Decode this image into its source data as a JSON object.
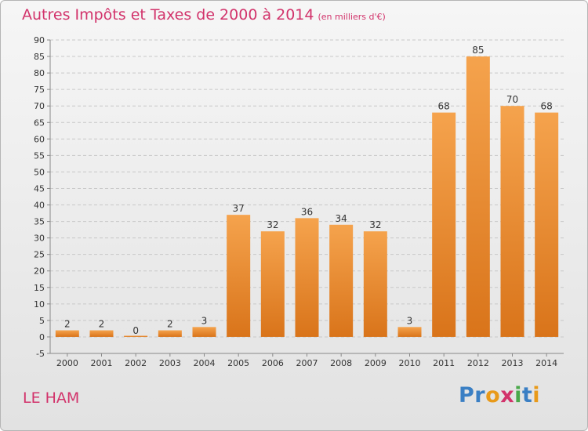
{
  "title": "Autres Impôts et Taxes de 2000 à 2014",
  "unit": "(en milliers d'€)",
  "place": "LE HAM",
  "brand": {
    "text": "Proxiti",
    "letters": [
      {
        "ch": "P",
        "color": "#3a7fc4"
      },
      {
        "ch": "r",
        "color": "#3a7fc4"
      },
      {
        "ch": "o",
        "color": "#e89a1a"
      },
      {
        "ch": "x",
        "color": "#d2336b"
      },
      {
        "ch": "i",
        "color": "#4aa84a"
      },
      {
        "ch": "t",
        "color": "#3a7fc4"
      },
      {
        "ch": "i",
        "color": "#e89a1a"
      }
    ]
  },
  "colors": {
    "title": "#d2336b",
    "bar_top": "#f5a34d",
    "bar_bottom": "#d9741a",
    "grid": "#c8c8c8"
  },
  "chart_data": {
    "type": "bar",
    "categories": [
      "2000",
      "2001",
      "2002",
      "2003",
      "2004",
      "2005",
      "2006",
      "2007",
      "2008",
      "2009",
      "2010",
      "2011",
      "2012",
      "2013",
      "2014"
    ],
    "values": [
      2,
      2,
      0,
      2,
      3,
      37,
      32,
      36,
      34,
      32,
      3,
      68,
      85,
      70,
      68
    ],
    "ylim": [
      -5,
      90
    ],
    "yticks": [
      -5,
      0,
      5,
      10,
      15,
      20,
      25,
      30,
      35,
      40,
      45,
      50,
      55,
      60,
      65,
      70,
      75,
      80,
      85,
      90
    ],
    "grid": true,
    "data_labels": true
  }
}
